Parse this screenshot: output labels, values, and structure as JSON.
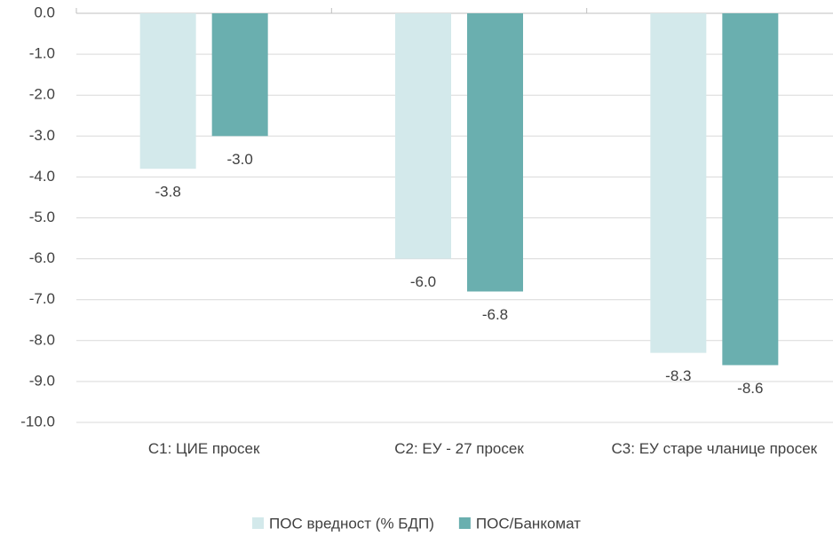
{
  "chart_data": {
    "type": "bar",
    "categories": [
      "C1: ЦИЕ просек",
      "C2: ЕУ - 27 просек",
      "C3: ЕУ старе чланице просек"
    ],
    "series": [
      {
        "name": "ПОС вредност (% БДП)",
        "color": "#d3e9eb",
        "values": [
          -3.8,
          -6.0,
          -8.3
        ],
        "value_labels": [
          "-3.8",
          "-6.0",
          "-8.3"
        ]
      },
      {
        "name": "ПОС/Банкомат",
        "color": "#6aafaf",
        "values": [
          -3.0,
          -6.8,
          -8.6
        ],
        "value_labels": [
          "-3.0",
          "-6.8",
          "-8.6"
        ]
      }
    ],
    "ylim": [
      -10,
      0
    ],
    "yticks": [
      {
        "value": 0,
        "label": "0.0"
      },
      {
        "value": -1,
        "label": "-1.0"
      },
      {
        "value": -2,
        "label": "-2.0"
      },
      {
        "value": -3,
        "label": "-3.0"
      },
      {
        "value": -4,
        "label": "-4.0"
      },
      {
        "value": -5,
        "label": "-5.0"
      },
      {
        "value": -6,
        "label": "-6.0"
      },
      {
        "value": -7,
        "label": "-7.0"
      },
      {
        "value": -8,
        "label": "-8.0"
      },
      {
        "value": -9,
        "label": "-9.0"
      },
      {
        "value": -10,
        "label": "-10.0"
      }
    ],
    "grid": true,
    "legend": "bottom"
  }
}
